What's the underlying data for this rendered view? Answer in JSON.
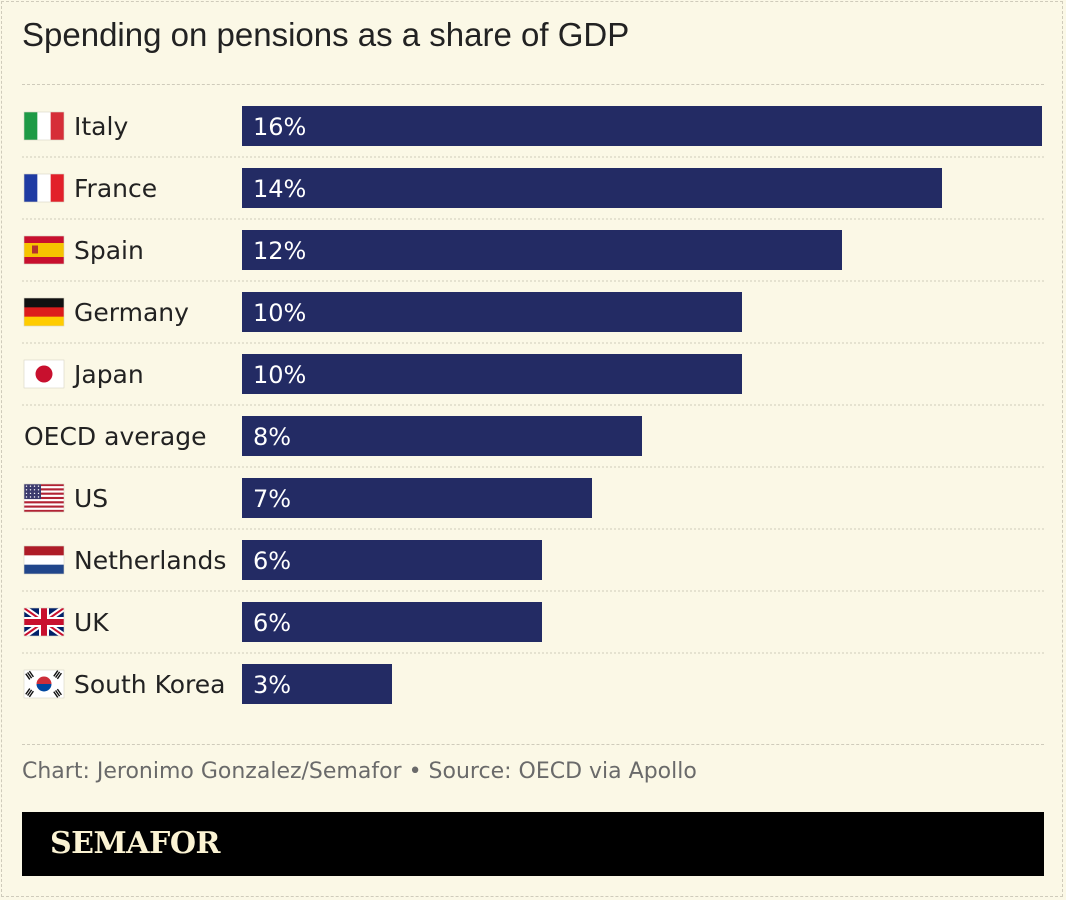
{
  "header": {
    "title": "Spending on pensions as a share of GDP"
  },
  "chart_data": {
    "type": "bar",
    "orientation": "horizontal",
    "categories": [
      "Italy",
      "France",
      "Spain",
      "Germany",
      "Japan",
      "OECD average",
      "US",
      "Netherlands",
      "UK",
      "South Korea"
    ],
    "flags": [
      "italy-flag-icon",
      "france-flag-icon",
      "spain-flag-icon",
      "germany-flag-icon",
      "japan-flag-icon",
      "",
      "us-flag-icon",
      "netherlands-flag-icon",
      "uk-flag-icon",
      "south-korea-flag-icon"
    ],
    "values": [
      16,
      14,
      12,
      10,
      10,
      8,
      7,
      6,
      6,
      3
    ],
    "value_labels": [
      "16%",
      "14%",
      "12%",
      "10%",
      "10%",
      "8%",
      "7%",
      "6%",
      "6%",
      "3%"
    ],
    "xlim": [
      0,
      16
    ],
    "bar_color": "#232b64",
    "grid": false,
    "legend": "none"
  },
  "footer": {
    "source": "Chart: Jeronimo Gonzalez/Semafor • Source: OECD via Apollo",
    "brand": "SEMAFOR"
  }
}
